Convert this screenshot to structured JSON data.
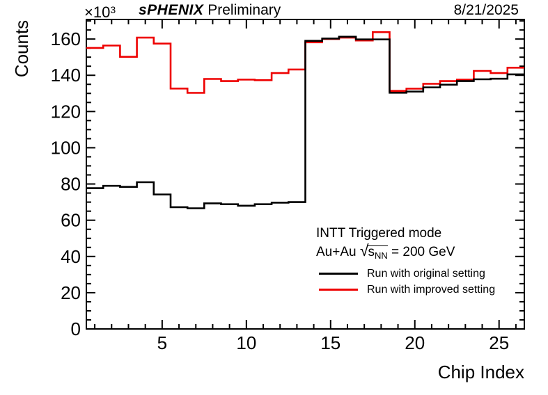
{
  "header": {
    "y_scale_prefix": "×10",
    "y_scale_exponent": "3",
    "experiment": "sPHENIX",
    "experiment_status": "Preliminary",
    "date": "8/21/2025"
  },
  "axes": {
    "x_title": "Chip Index",
    "y_title": "Counts"
  },
  "annotations": {
    "mode_line": "INTT Triggered mode",
    "energy_prefix": "Au+Au ",
    "sqrt_symbol": "√",
    "energy_s": "s",
    "energy_subscript": "NN",
    "energy_suffix": " = 200 GeV"
  },
  "chart_data": {
    "type": "line",
    "style": "step-histogram",
    "title": "sPHENIX Preliminary",
    "date_stamp": "8/21/2025",
    "xlabel": "Chip Index",
    "ylabel": "Counts",
    "y_unit": "×10³ counts",
    "xlim": [
      0.5,
      26.5
    ],
    "ylim": [
      0,
      170.8
    ],
    "x_major_ticks": [
      5,
      10,
      15,
      20,
      25
    ],
    "x_minor_step": 1,
    "y_major_ticks": [
      0,
      20,
      40,
      60,
      80,
      100,
      120,
      140,
      160
    ],
    "y_minor_step": 5,
    "grid": false,
    "legend_position": "inside-lower-right",
    "categories": [
      1,
      2,
      3,
      4,
      5,
      6,
      7,
      8,
      9,
      10,
      11,
      12,
      13,
      14,
      15,
      16,
      17,
      18,
      19,
      20,
      21,
      22,
      23,
      24,
      25,
      26
    ],
    "series": [
      {
        "name": "Run with original setting",
        "color": "#000000",
        "values": [
          77.7,
          79.0,
          78.4,
          81.0,
          74.2,
          67.2,
          66.6,
          69.3,
          68.8,
          68.0,
          68.8,
          69.7,
          70.0,
          159.0,
          160.3,
          161.3,
          159.8,
          159.8,
          130.4,
          131.0,
          133.3,
          134.8,
          136.8,
          137.8,
          138.1,
          140.5
        ]
      },
      {
        "name": "Run with improved setting",
        "color": "#ee0000",
        "values": [
          155.1,
          156.4,
          150.2,
          160.8,
          157.5,
          132.7,
          130.3,
          138.0,
          136.8,
          137.6,
          137.3,
          141.2,
          143.2,
          158.2,
          160.0,
          160.8,
          159.2,
          163.8,
          131.4,
          132.6,
          135.3,
          136.8,
          137.6,
          142.4,
          141.2,
          144.2
        ]
      }
    ]
  }
}
